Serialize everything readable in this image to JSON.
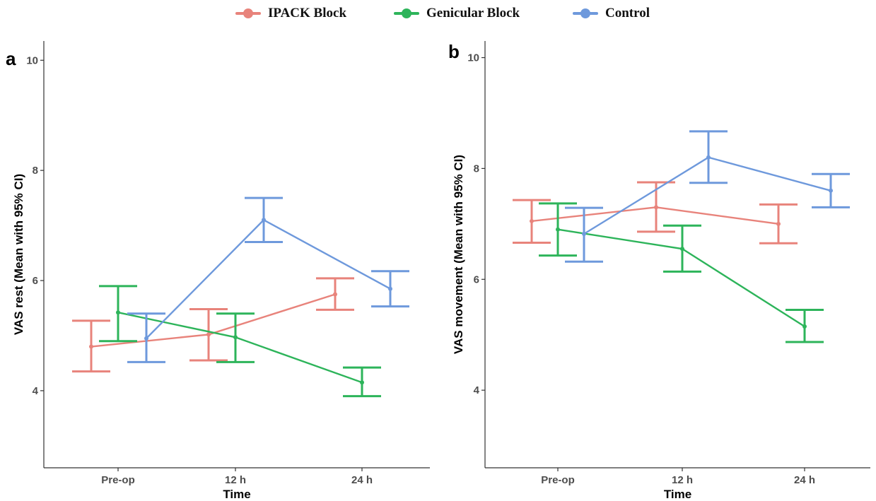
{
  "legend": {
    "items": [
      {
        "label": "IPACK Block",
        "color": "#E8837B"
      },
      {
        "label": "Genicular Block",
        "color": "#2DB45A"
      },
      {
        "label": "Control",
        "color": "#6E99DC"
      }
    ]
  },
  "chart_data": [
    {
      "type": "line",
      "panel": "a",
      "categories": [
        "Pre-op",
        "12 h",
        "24 h"
      ],
      "xlabel": "Time",
      "ylabel": "VAS rest (Mean with 95% CI)",
      "ylim": [
        2.6,
        10.35
      ],
      "yticks": [
        4,
        6,
        8,
        10
      ],
      "grid": false,
      "series": [
        {
          "name": "IPACK Block",
          "color": "#E8837B",
          "mean": [
            4.8,
            5.02,
            5.75
          ],
          "lower": [
            4.35,
            4.55,
            5.47
          ],
          "upper": [
            5.27,
            5.48,
            6.04
          ]
        },
        {
          "name": "Genicular Block",
          "color": "#2DB45A",
          "mean": [
            5.42,
            4.97,
            4.15
          ],
          "lower": [
            4.9,
            4.52,
            3.9
          ],
          "upper": [
            5.9,
            5.4,
            4.42
          ]
        },
        {
          "name": "Control",
          "color": "#6E99DC",
          "mean": [
            4.95,
            7.1,
            5.85
          ],
          "lower": [
            4.52,
            6.7,
            5.53
          ],
          "upper": [
            5.4,
            7.5,
            6.17
          ]
        }
      ]
    },
    {
      "type": "line",
      "panel": "b",
      "categories": [
        "Pre-op",
        "12 h",
        "24 h"
      ],
      "xlabel": "Time",
      "ylabel": "VAS movement (Mean with 95% CI)",
      "ylim": [
        2.6,
        10.3
      ],
      "yticks": [
        4,
        6,
        8,
        10
      ],
      "grid": false,
      "series": [
        {
          "name": "IPACK Block",
          "color": "#E8837B",
          "mean": [
            7.05,
            7.3,
            7.0
          ],
          "lower": [
            6.66,
            6.86,
            6.65
          ],
          "upper": [
            7.43,
            7.75,
            7.35
          ]
        },
        {
          "name": "Genicular Block",
          "color": "#2DB45A",
          "mean": [
            6.9,
            6.55,
            5.15
          ],
          "lower": [
            6.43,
            6.14,
            4.87
          ],
          "upper": [
            7.37,
            6.97,
            5.45
          ]
        },
        {
          "name": "Control",
          "color": "#6E99DC",
          "mean": [
            6.82,
            8.2,
            7.6
          ],
          "lower": [
            6.32,
            7.74,
            7.3
          ],
          "upper": [
            7.29,
            8.67,
            7.9
          ]
        }
      ]
    }
  ]
}
